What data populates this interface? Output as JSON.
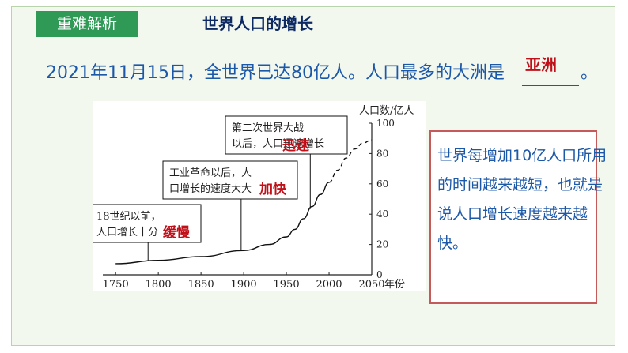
{
  "badge": "重难解析",
  "title": "世界人口的增长",
  "question": {
    "text": "2021年11月15日，全世界已达80亿人。人口最多的大洲是",
    "end": "。",
    "answer": "亚洲"
  },
  "note": "世界每增加10亿人口所用的时间越来越短，也就是说人口增长速度越来越快。",
  "chart_data": {
    "type": "line",
    "ylabel": "人口数/亿人",
    "xlabel": "年份",
    "xlim": [
      1735,
      2050
    ],
    "ylim": [
      0,
      100
    ],
    "x_ticks": [
      1750,
      1800,
      1850,
      1900,
      1950,
      2000,
      2050
    ],
    "y_ticks": [
      0,
      20,
      40,
      60,
      80,
      100
    ],
    "series": [
      {
        "style": "solid",
        "x": [
          1750,
          1800,
          1850,
          1900,
          1930,
          1950,
          1960,
          1970,
          1980,
          1990,
          2000
        ],
        "y": [
          7.3,
          9.5,
          12,
          16,
          20,
          25,
          30,
          37,
          45,
          53,
          61
        ]
      },
      {
        "style": "dashed",
        "x": [
          2000,
          2010,
          2020,
          2030,
          2040,
          2050
        ],
        "y": [
          61,
          69,
          77,
          83,
          87,
          89
        ]
      }
    ],
    "annotations": [
      {
        "text": "18世纪以前，人口增长十分",
        "keyword": "缓慢",
        "year": 1788
      },
      {
        "text": "工业革命以后，人口增长的速度大大",
        "keyword": "加快",
        "year": 1897
      },
      {
        "text": "第二次世界大战以后，人口迅速增长",
        "keyword": "迅速",
        "year": 1978
      }
    ]
  }
}
